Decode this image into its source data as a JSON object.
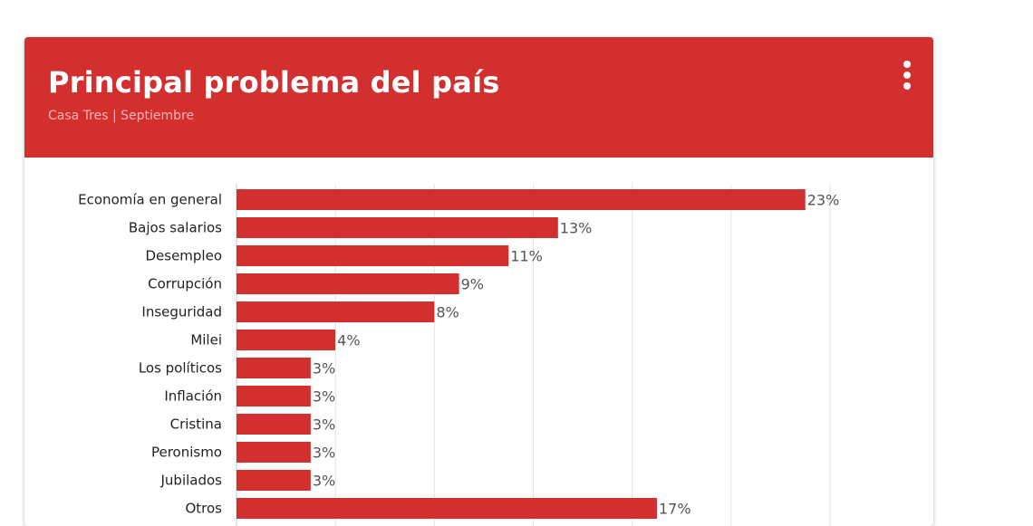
{
  "card": {
    "title": "Principal problema del país",
    "subtitle": "Casa Tres | Septiembre",
    "menu_icon": "more-vert-icon"
  },
  "colors": {
    "header": "#d32f2f",
    "bar": "#d32f2f"
  },
  "chart_data": {
    "type": "bar",
    "orientation": "horizontal",
    "title": "Principal problema del país",
    "subtitle": "Casa Tres | Septiembre",
    "categories": [
      "Economía en general",
      "Bajos salarios",
      "Desempleo",
      "Corrupción",
      "Inseguridad",
      "Milei",
      "Los políticos",
      "Inflación",
      "Cristina",
      "Peronismo",
      "Jubilados",
      "Otros"
    ],
    "values": [
      23,
      13,
      11,
      9,
      8,
      4,
      3,
      3,
      3,
      3,
      3,
      17
    ],
    "value_labels": [
      "23%",
      "13%",
      "11%",
      "9%",
      "8%",
      "4%",
      "3%",
      "3%",
      "3%",
      "3%",
      "3%",
      "17%"
    ],
    "unit": "%",
    "xlim": [
      0,
      24
    ],
    "grid": true,
    "legend": "none"
  }
}
